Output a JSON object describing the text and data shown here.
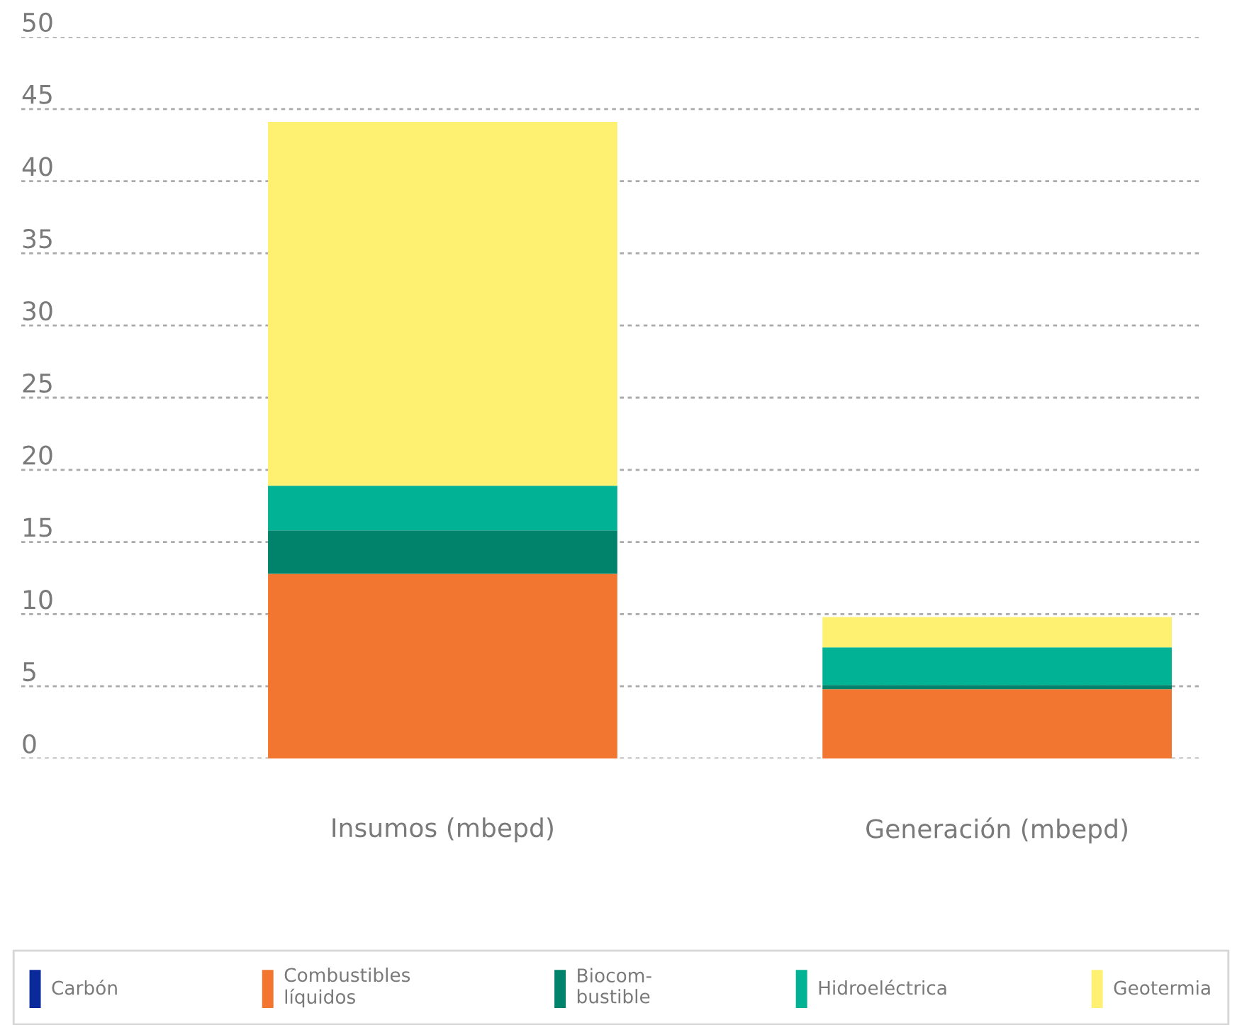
{
  "chart_data": {
    "type": "bar",
    "stacked": true,
    "categories": [
      "Insumos (mbepd)",
      "Generación (mbepd)"
    ],
    "series": [
      {
        "name": "Carbón",
        "color": "#0a2a9b",
        "values": [
          0,
          0
        ]
      },
      {
        "name": "Combustibles\nlíquidos",
        "color": "#f27530",
        "values": [
          12.8,
          4.8
        ]
      },
      {
        "name": "Biocom-\nbustible",
        "color": "#00836a",
        "values": [
          3.0,
          0.3
        ]
      },
      {
        "name": "Hidroeléctrica",
        "color": "#02b294",
        "values": [
          3.1,
          2.6
        ]
      },
      {
        "name": "Geotermia",
        "color": "#fef172",
        "values": [
          25.2,
          2.1
        ]
      }
    ],
    "ylim": [
      0,
      50
    ],
    "yticks": [
      0,
      5,
      10,
      15,
      20,
      25,
      30,
      35,
      40,
      45,
      50
    ],
    "grid": "y",
    "legend": "bottom"
  }
}
